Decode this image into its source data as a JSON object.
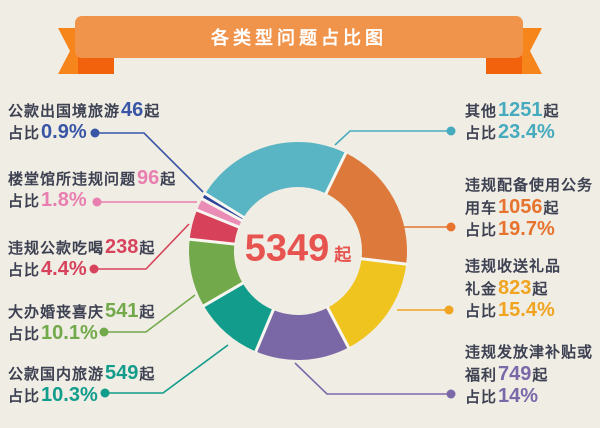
{
  "title": "各类型问题占比图",
  "strings": {
    "cases_suffix": "起",
    "ratio_prefix": "占比"
  },
  "colors": {
    "background": "#F0EDE4",
    "banner_body": "#F0944C",
    "banner_tail": "#F6851C",
    "banner_fold": "#F2620D",
    "banner_text": "#FFFFFF",
    "label_text": "#3D4152",
    "center_total": "#E7534F",
    "slice_gap": "#F8F6F0"
  },
  "chart_data": {
    "type": "pie",
    "subtype": "donut",
    "title": "各类型问题占比图",
    "center": {
      "value": "5349",
      "unit": "起"
    },
    "start_angle_deg": 64,
    "direction": "clockwise",
    "legend_position": "callout-labels",
    "slices": [
      {
        "id": "official-vehicles",
        "label": "违规配备使用公务用车",
        "line1": "违规配备使用公务",
        "pre": "用车",
        "count": "1056",
        "value": 1056,
        "percent": 19.7,
        "percent_text": "19.7%",
        "color": "#DD7A3B",
        "accent": "#E6742F"
      },
      {
        "id": "gifts-money",
        "label": "违规收送礼品礼金",
        "line1": "违规收送礼品",
        "pre": "礼金",
        "count": "823",
        "value": 823,
        "percent": 15.4,
        "percent_text": "15.4%",
        "color": "#F0C41E",
        "accent": "#F0A41F"
      },
      {
        "id": "allowances-welfare",
        "label": "违规发放津补贴或福利",
        "line1": "违规发放津补贴或",
        "pre": "福利",
        "count": "749",
        "value": 749,
        "percent": 14,
        "percent_text": "14%",
        "color": "#7A67A5",
        "accent": "#7A68A9"
      },
      {
        "id": "domestic-travel",
        "label": "公款国内旅游",
        "line1": "",
        "pre": "公款国内旅游",
        "count": "549",
        "value": 549,
        "percent": 10.3,
        "percent_text": "10.3%",
        "color": "#129C8C",
        "accent": "#129C8C"
      },
      {
        "id": "weddings-funerals",
        "label": "大办婚丧喜庆",
        "line1": "",
        "pre": "大办婚丧喜庆",
        "count": "541",
        "value": 541,
        "percent": 10.1,
        "percent_text": "10.1%",
        "color": "#72AA4B",
        "accent": "#72A94B"
      },
      {
        "id": "banquets",
        "label": "违规公款吃喝",
        "line1": "",
        "pre": "违规公款吃喝",
        "count": "238",
        "value": 238,
        "percent": 4.4,
        "percent_text": "4.4%",
        "color": "#D7425A",
        "accent": "#D7425C"
      },
      {
        "id": "buildings-halls",
        "label": "楼堂馆所违规问题",
        "line1": "",
        "pre": "楼堂馆所违规问题",
        "count": "96",
        "value": 96,
        "percent": 1.8,
        "percent_text": "1.8%",
        "color": "#E98DB6",
        "accent": "#E87FB0"
      },
      {
        "id": "overseas-travel",
        "label": "公款出国境旅游",
        "line1": "",
        "pre": "公款出国境旅游",
        "count": "46",
        "value": 46,
        "percent": 0.9,
        "percent_text": "0.9%",
        "color": "#2C459B",
        "accent": "#3956A6"
      },
      {
        "id": "others",
        "label": "其他",
        "line1": "",
        "pre": "其他",
        "count": "1251",
        "value": 1251,
        "percent": 23.4,
        "percent_text": "23.4%",
        "color": "#59B5C3",
        "accent": "#46ABBE"
      }
    ]
  }
}
